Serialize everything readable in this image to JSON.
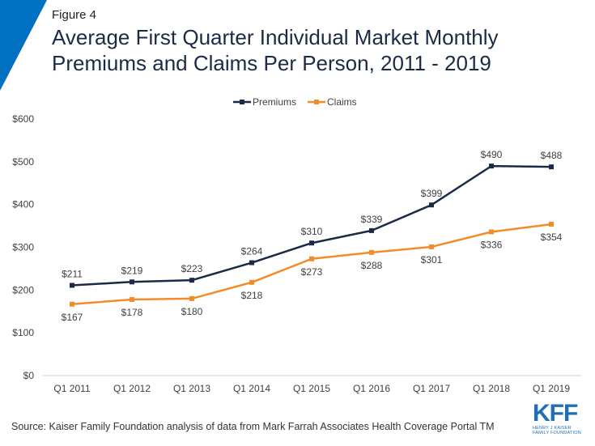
{
  "figure_label": "Figure 4",
  "title_lines": [
    "Average First Quarter Individual Market Monthly",
    "Premiums and Claims Per Person, 2011 - 2019"
  ],
  "source": "Source: Kaiser Family Foundation analysis of data from Mark Farrah Associates Health Coverage Portal TM",
  "logo": {
    "main": "KFF",
    "sub1": "HENRY J KAISER",
    "sub2": "FAMILY FOUNDATION"
  },
  "accent_color": "#0070c0",
  "chart_data": {
    "type": "line",
    "title": "",
    "xlabel": "",
    "ylabel": "",
    "categories": [
      "Q1 2011",
      "Q1 2012",
      "Q1 2013",
      "Q1 2014",
      "Q1 2015",
      "Q1 2016",
      "Q1 2017",
      "Q1 2018",
      "Q1 2019"
    ],
    "ylim": [
      0,
      600
    ],
    "yticks": [
      0,
      100,
      200,
      300,
      400,
      500,
      600
    ],
    "ytick_labels": [
      "$0",
      "$100",
      "$200",
      "$300",
      "$400",
      "$500",
      "$600"
    ],
    "grid": false,
    "legend": "top-center",
    "series": [
      {
        "name": "Premiums",
        "color": "#1c2b45",
        "values": [
          211,
          219,
          223,
          264,
          310,
          339,
          399,
          490,
          488
        ],
        "labels": [
          "$211",
          "$219",
          "$223",
          "$264",
          "$310",
          "$339",
          "$399",
          "$490",
          "$488"
        ],
        "label_position": "above"
      },
      {
        "name": "Claims",
        "color": "#f28c28",
        "values": [
          167,
          178,
          180,
          218,
          273,
          288,
          301,
          336,
          354
        ],
        "labels": [
          "$167",
          "$178",
          "$180",
          "$218",
          "$273",
          "$288",
          "$301",
          "$336",
          "$354"
        ],
        "label_position": "below"
      }
    ]
  }
}
